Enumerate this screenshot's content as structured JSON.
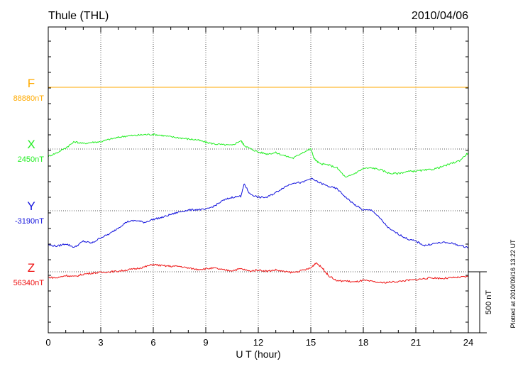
{
  "chart_data": {
    "type": "line",
    "title": "Thule (THL)",
    "date": "2010/04/06",
    "xlabel": "U T (hour)",
    "xlim": [
      0,
      24
    ],
    "xticks": [
      0,
      3,
      6,
      9,
      12,
      15,
      18,
      21,
      24
    ],
    "tick_labels": [
      "0",
      "3",
      "6",
      "9",
      "12",
      "15",
      "18",
      "21",
      "24"
    ],
    "scale_bar_label": "500 nT",
    "scale_bar_nT": 500,
    "plotted_note": "Plotted at 2010/09/16 13:22 UT",
    "grid": true,
    "series": [
      {
        "name": "F",
        "baseline_label": "88880nT",
        "color": "#ffaa00",
        "x": [
          0,
          24
        ],
        "dy_nT": [
          0,
          0
        ]
      },
      {
        "name": "X",
        "baseline_label": "2450nT",
        "color": "#22ee22",
        "x": [
          0,
          0.5,
          1,
          1.5,
          2,
          2.5,
          3,
          3.5,
          4,
          4.5,
          5,
          5.5,
          6,
          6.5,
          7,
          7.5,
          8,
          8.5,
          9,
          9.5,
          10,
          10.5,
          11,
          11.2,
          11.5,
          12,
          12.5,
          13,
          13.5,
          14,
          14.5,
          15,
          15.2,
          15.5,
          16,
          16.5,
          17,
          17.5,
          18,
          18.5,
          19,
          19.5,
          20,
          20.5,
          21,
          21.5,
          22,
          22.5,
          23,
          23.5,
          24
        ],
        "dy_nT": [
          -60,
          -30,
          10,
          60,
          45,
          55,
          60,
          80,
          95,
          108,
          112,
          118,
          120,
          112,
          100,
          92,
          82,
          75,
          55,
          42,
          35,
          30,
          70,
          30,
          5,
          -25,
          -40,
          -30,
          -55,
          -75,
          -30,
          0,
          -80,
          -120,
          -130,
          -155,
          -235,
          -200,
          -160,
          -155,
          -170,
          -200,
          -200,
          -185,
          -180,
          -175,
          -165,
          -145,
          -120,
          -95,
          -30
        ]
      },
      {
        "name": "Y",
        "baseline_label": "-3190nT",
        "color": "#1111dd",
        "x": [
          0,
          0.5,
          1,
          1.5,
          2,
          2.5,
          3,
          3.5,
          4,
          4.5,
          5,
          5.5,
          6,
          6.5,
          7,
          7.5,
          8,
          8.5,
          9,
          9.5,
          10,
          10.5,
          11,
          11.2,
          11.5,
          12,
          12.5,
          13,
          13.5,
          14,
          14.5,
          15,
          15.5,
          16,
          16.5,
          17,
          17.5,
          18,
          18.5,
          19,
          19.5,
          20,
          20.5,
          21,
          21.5,
          22,
          22.5,
          23,
          23.5,
          24
        ],
        "dy_nT": [
          -280,
          -290,
          -270,
          -300,
          -250,
          -265,
          -220,
          -190,
          -140,
          -90,
          -80,
          -95,
          -70,
          -55,
          -30,
          -10,
          5,
          10,
          10,
          40,
          85,
          110,
          120,
          220,
          140,
          110,
          110,
          150,
          195,
          230,
          230,
          265,
          230,
          200,
          180,
          110,
          50,
          5,
          5,
          -70,
          -150,
          -190,
          -230,
          -250,
          -285,
          -270,
          -260,
          -265,
          -285,
          -300
        ]
      },
      {
        "name": "Z",
        "baseline_label": "56340nT",
        "color": "#ee1111",
        "x": [
          0,
          0.5,
          1,
          1.5,
          2,
          2.5,
          3,
          3.5,
          4,
          4.5,
          5,
          5.5,
          6,
          6.5,
          7,
          7.5,
          8,
          8.5,
          9,
          9.5,
          10,
          10.5,
          11,
          11.5,
          12,
          12.5,
          13,
          13.5,
          14,
          14.5,
          15,
          15.3,
          15.7,
          16,
          16.5,
          17,
          17.5,
          18,
          18.5,
          19,
          19.5,
          20,
          20.5,
          21,
          21.5,
          22,
          22.5,
          23,
          23.5,
          24
        ],
        "dy_nT": [
          -45,
          -50,
          -30,
          -40,
          -20,
          -10,
          -5,
          0,
          5,
          15,
          25,
          40,
          60,
          50,
          45,
          45,
          30,
          20,
          25,
          30,
          15,
          10,
          25,
          5,
          15,
          5,
          15,
          0,
          -5,
          10,
          30,
          75,
          25,
          -30,
          -75,
          -75,
          -85,
          -70,
          -80,
          -90,
          -85,
          -80,
          -70,
          -65,
          -55,
          -50,
          -55,
          -50,
          -45,
          -40
        ]
      }
    ]
  }
}
